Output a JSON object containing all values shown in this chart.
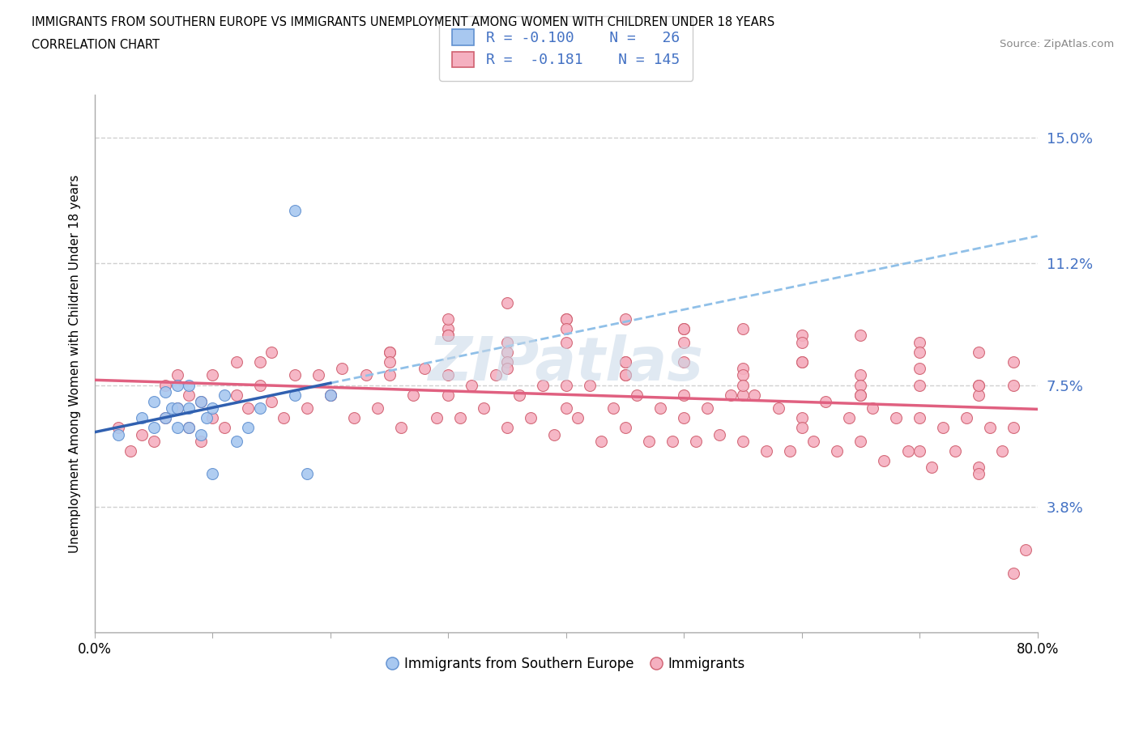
{
  "title_line1": "IMMIGRANTS FROM SOUTHERN EUROPE VS IMMIGRANTS UNEMPLOYMENT AMONG WOMEN WITH CHILDREN UNDER 18 YEARS",
  "title_line2": "CORRELATION CHART",
  "source_text": "Source: ZipAtlas.com",
  "ylabel": "Unemployment Among Women with Children Under 18 years",
  "color_blue_fill": "#a8c8f0",
  "color_blue_edge": "#6090d0",
  "color_pink_fill": "#f5b0c0",
  "color_pink_edge": "#d06070",
  "trend_blue_solid": "#3060b0",
  "trend_pink_solid": "#e06080",
  "trend_blue_dash": "#90c0e8",
  "legend_text_color": "#4472c4",
  "ytick_vals": [
    0.038,
    0.075,
    0.112,
    0.15
  ],
  "ytick_labels": [
    "3.8%",
    "7.5%",
    "11.2%",
    "15.0%"
  ],
  "xtick_labels": [
    "0.0%",
    "",
    "",
    "",
    "",
    "",
    "",
    "",
    "80.0%"
  ],
  "watermark": "ZIPatlas",
  "blue_x": [
    0.02,
    0.04,
    0.05,
    0.05,
    0.06,
    0.06,
    0.065,
    0.07,
    0.07,
    0.07,
    0.08,
    0.08,
    0.08,
    0.09,
    0.09,
    0.095,
    0.1,
    0.1,
    0.11,
    0.12,
    0.13,
    0.14,
    0.17,
    0.17,
    0.18,
    0.2
  ],
  "blue_y": [
    0.06,
    0.065,
    0.062,
    0.07,
    0.065,
    0.073,
    0.068,
    0.062,
    0.068,
    0.075,
    0.062,
    0.068,
    0.075,
    0.06,
    0.07,
    0.065,
    0.048,
    0.068,
    0.072,
    0.058,
    0.062,
    0.068,
    0.128,
    0.072,
    0.048,
    0.072
  ],
  "pink_x": [
    0.02,
    0.03,
    0.04,
    0.05,
    0.06,
    0.06,
    0.07,
    0.07,
    0.08,
    0.08,
    0.09,
    0.09,
    0.1,
    0.1,
    0.11,
    0.12,
    0.12,
    0.13,
    0.14,
    0.14,
    0.15,
    0.16,
    0.17,
    0.18,
    0.19,
    0.2,
    0.21,
    0.22,
    0.23,
    0.24,
    0.25,
    0.26,
    0.27,
    0.28,
    0.29,
    0.3,
    0.31,
    0.32,
    0.33,
    0.34,
    0.35,
    0.36,
    0.37,
    0.38,
    0.39,
    0.4,
    0.41,
    0.42,
    0.43,
    0.44,
    0.45,
    0.46,
    0.47,
    0.48,
    0.49,
    0.5,
    0.51,
    0.52,
    0.53,
    0.54,
    0.55,
    0.56,
    0.57,
    0.58,
    0.59,
    0.6,
    0.61,
    0.62,
    0.63,
    0.64,
    0.65,
    0.66,
    0.67,
    0.68,
    0.69,
    0.7,
    0.71,
    0.72,
    0.73,
    0.74,
    0.75,
    0.76,
    0.77,
    0.78,
    0.3,
    0.35,
    0.4,
    0.45,
    0.5,
    0.55,
    0.6,
    0.65,
    0.7,
    0.75,
    0.78,
    0.25,
    0.3,
    0.35,
    0.4,
    0.45,
    0.5,
    0.55,
    0.6,
    0.65,
    0.7,
    0.75,
    0.25,
    0.3,
    0.35,
    0.4,
    0.45,
    0.5,
    0.55,
    0.6,
    0.65,
    0.7,
    0.75,
    0.78,
    0.3,
    0.35,
    0.4,
    0.45,
    0.5,
    0.55,
    0.6,
    0.65,
    0.7,
    0.75,
    0.15,
    0.2,
    0.25,
    0.3,
    0.35,
    0.4,
    0.45,
    0.5,
    0.55,
    0.6,
    0.65,
    0.7,
    0.75,
    0.78,
    0.79
  ],
  "pink_y": [
    0.062,
    0.055,
    0.06,
    0.058,
    0.065,
    0.075,
    0.068,
    0.078,
    0.062,
    0.072,
    0.058,
    0.07,
    0.065,
    0.078,
    0.062,
    0.072,
    0.082,
    0.068,
    0.075,
    0.082,
    0.07,
    0.065,
    0.078,
    0.068,
    0.078,
    0.072,
    0.08,
    0.065,
    0.078,
    0.068,
    0.078,
    0.062,
    0.072,
    0.08,
    0.065,
    0.078,
    0.065,
    0.075,
    0.068,
    0.078,
    0.062,
    0.072,
    0.065,
    0.075,
    0.06,
    0.075,
    0.065,
    0.075,
    0.058,
    0.068,
    0.062,
    0.072,
    0.058,
    0.068,
    0.058,
    0.072,
    0.058,
    0.068,
    0.06,
    0.072,
    0.058,
    0.072,
    0.055,
    0.068,
    0.055,
    0.065,
    0.058,
    0.07,
    0.055,
    0.065,
    0.058,
    0.068,
    0.052,
    0.065,
    0.055,
    0.065,
    0.05,
    0.062,
    0.055,
    0.065,
    0.05,
    0.062,
    0.055,
    0.062,
    0.092,
    0.1,
    0.088,
    0.095,
    0.082,
    0.092,
    0.082,
    0.09,
    0.075,
    0.085,
    0.075,
    0.085,
    0.095,
    0.088,
    0.095,
    0.082,
    0.092,
    0.08,
    0.09,
    0.078,
    0.088,
    0.075,
    0.085,
    0.09,
    0.085,
    0.095,
    0.082,
    0.092,
    0.078,
    0.088,
    0.075,
    0.085,
    0.072,
    0.082,
    0.09,
    0.082,
    0.092,
    0.078,
    0.088,
    0.072,
    0.082,
    0.072,
    0.08,
    0.075,
    0.085,
    0.072,
    0.082,
    0.072,
    0.08,
    0.068,
    0.078,
    0.065,
    0.075,
    0.062,
    0.072,
    0.055,
    0.048,
    0.018,
    0.025
  ]
}
